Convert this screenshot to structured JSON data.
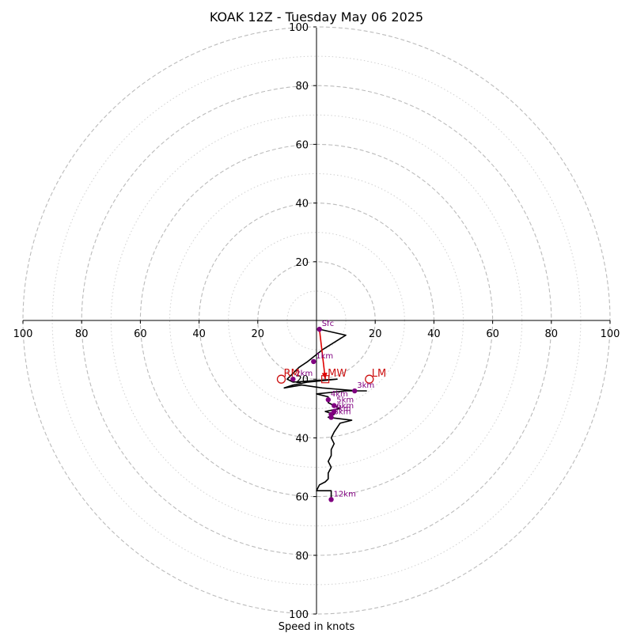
{
  "chart_data": {
    "type": "hodograph",
    "title": "KOAK 12Z - Tuesday May 06 2025",
    "xlabel": "Speed in knots",
    "units": "knots",
    "range": [
      -100,
      100
    ],
    "rings_major": [
      20,
      40,
      60,
      80,
      100
    ],
    "rings_minor": [
      10,
      30,
      50,
      70,
      90
    ],
    "tick_labels": [
      "20",
      "40",
      "60",
      "80",
      "100"
    ],
    "profile": [
      [
        1,
        -3
      ],
      [
        10,
        -5
      ],
      [
        2,
        -10
      ],
      [
        -3,
        -14
      ],
      [
        -6,
        -16
      ],
      [
        -10,
        -20
      ],
      [
        -8,
        -21
      ],
      [
        7,
        -20
      ],
      [
        -3,
        -21
      ],
      [
        -8,
        -22
      ],
      [
        -11,
        -23
      ],
      [
        -5,
        -22
      ],
      [
        2,
        -23
      ],
      [
        14,
        -24
      ],
      [
        17,
        -24
      ],
      [
        10,
        -24
      ],
      [
        0,
        -25
      ],
      [
        4,
        -26
      ],
      [
        4,
        -28
      ],
      [
        6,
        -29
      ],
      [
        8,
        -30
      ],
      [
        3,
        -31
      ],
      [
        6,
        -32
      ],
      [
        4,
        -33
      ],
      [
        12,
        -34
      ],
      [
        8,
        -35
      ],
      [
        6,
        -38
      ],
      [
        5,
        -40
      ],
      [
        6,
        -42
      ],
      [
        5,
        -44
      ],
      [
        5,
        -46
      ],
      [
        4,
        -48
      ],
      [
        5,
        -50
      ],
      [
        4,
        -52
      ],
      [
        4,
        -54
      ],
      [
        3,
        -55
      ],
      [
        1,
        -56
      ],
      [
        0,
        -58
      ],
      [
        5,
        -58
      ],
      [
        5,
        -61
      ]
    ],
    "height_markers": [
      {
        "label": "Sfc",
        "u": 1,
        "v": -3
      },
      {
        "label": "1km",
        "u": -1,
        "v": -14
      },
      {
        "label": "2km",
        "u": -8,
        "v": -20
      },
      {
        "label": "3km",
        "u": 13,
        "v": -24
      },
      {
        "label": "4km",
        "u": 4,
        "v": -27
      },
      {
        "label": "5km",
        "u": 6,
        "v": -29
      },
      {
        "label": "6km",
        "u": 6,
        "v": -31
      },
      {
        "label": "7km",
        "u": 5,
        "v": -32
      },
      {
        "label": "8km",
        "u": 5,
        "v": -33
      },
      {
        "label": "12km",
        "u": 5,
        "v": -61
      }
    ],
    "storm_motion": [
      {
        "label": "RM",
        "u": -12,
        "v": -20,
        "marker": "circle"
      },
      {
        "label": "LM",
        "u": 18,
        "v": -20,
        "marker": "circle"
      },
      {
        "label": "MW",
        "u": 3,
        "v": -20,
        "marker": "square"
      }
    ],
    "shear_vector": {
      "from": [
        1,
        -3
      ],
      "to": [
        3,
        -20
      ]
    },
    "colors": {
      "profile": "#000000",
      "markers": "#800080",
      "storm_motion": "#cc1111",
      "grid": "#bbbbbb"
    }
  }
}
